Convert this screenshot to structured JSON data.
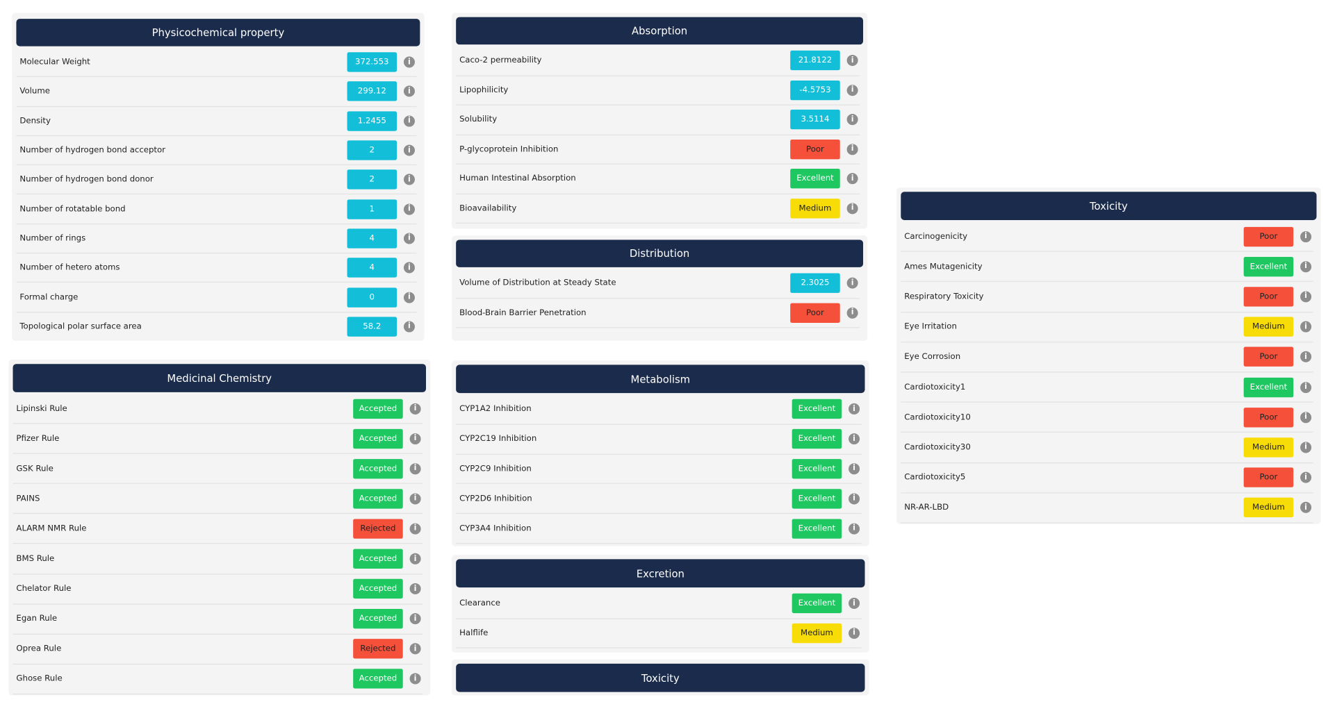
{
  "panels": [
    {
      "title": "Physicochemical property",
      "rows": [
        {
          "label": "Molecular Weight",
          "value": "372.553",
          "color": "#13bfd8"
        },
        {
          "label": "Volume",
          "value": "299.12",
          "color": "#13bfd8"
        },
        {
          "label": "Density",
          "value": "1.2455",
          "color": "#13bfd8"
        },
        {
          "label": "Number of hydrogen bond acceptor",
          "value": "2",
          "color": "#13bfd8"
        },
        {
          "label": "Number of hydrogen bond donor",
          "value": "2",
          "color": "#13bfd8"
        },
        {
          "label": "Number of rotatable bond",
          "value": "1",
          "color": "#13bfd8"
        },
        {
          "label": "Number of rings",
          "value": "4",
          "color": "#13bfd8"
        },
        {
          "label": "Number of hetero atoms",
          "value": "4",
          "color": "#13bfd8"
        },
        {
          "label": "Formal charge",
          "value": "0",
          "color": "#13bfd8"
        },
        {
          "label": "Topological polar surface area",
          "value": "58.2",
          "color": "#13bfd8"
        }
      ]
    },
    {
      "title": "Medicinal Chemistry",
      "rows": [
        {
          "label": "Lipinski Rule",
          "value": "Accepted",
          "color": "#1ec760"
        },
        {
          "label": "Pfizer Rule",
          "value": "Accepted",
          "color": "#1ec760"
        },
        {
          "label": "GSK Rule",
          "value": "Accepted",
          "color": "#1ec760"
        },
        {
          "label": "PAINS",
          "value": "Accepted",
          "color": "#1ec760"
        },
        {
          "label": "ALARM NMR Rule",
          "value": "Rejected",
          "color": "#f4503a"
        },
        {
          "label": "BMS Rule",
          "value": "Accepted",
          "color": "#1ec760"
        },
        {
          "label": "Chelator Rule",
          "value": "Accepted",
          "color": "#1ec760"
        },
        {
          "label": "Egan Rule",
          "value": "Accepted",
          "color": "#1ec760"
        },
        {
          "label": "Oprea Rule",
          "value": "Rejected",
          "color": "#f4503a"
        },
        {
          "label": "Ghose Rule",
          "value": "Accepted",
          "color": "#1ec760"
        }
      ]
    },
    {
      "title": "Absorption",
      "rows": [
        {
          "label": "Caco-2 permeability",
          "value": "21.8122",
          "color": "#13bfd8"
        },
        {
          "label": "Lipophilicity",
          "value": "-4.5753",
          "color": "#13bfd8"
        },
        {
          "label": "Solubility",
          "value": "3.5114",
          "color": "#13bfd8"
        },
        {
          "label": "P-glycoprotein Inhibition",
          "value": "Poor",
          "color": "#f4503a"
        },
        {
          "label": "Human Intestinal Absorption",
          "value": "Excellent",
          "color": "#1ec760"
        },
        {
          "label": "Bioavailability",
          "value": "Medium",
          "color": "#f7dc08"
        }
      ]
    },
    {
      "title": "Distribution",
      "rows": [
        {
          "label": "Volume of Distribution at Steady State",
          "value": "2.3025",
          "color": "#13bfd8"
        },
        {
          "label": "Blood-Brain Barrier Penetration",
          "value": "Poor",
          "color": "#f4503a"
        }
      ]
    },
    {
      "title": "Metabolism",
      "rows": [
        {
          "label": "CYP1A2 Inhibition",
          "value": "Excellent",
          "color": "#1ec760"
        },
        {
          "label": "CYP2C19 Inhibition",
          "value": "Excellent",
          "color": "#1ec760"
        },
        {
          "label": "CYP2C9 Inhibition",
          "value": "Excellent",
          "color": "#1ec760"
        },
        {
          "label": "CYP2D6 Inhibition",
          "value": "Excellent",
          "color": "#1ec760"
        },
        {
          "label": "CYP3A4 Inhibition",
          "value": "Excellent",
          "color": "#1ec760"
        }
      ]
    },
    {
      "title": "Excretion",
      "rows": [
        {
          "label": "Clearance",
          "value": "Excellent",
          "color": "#1ec760"
        },
        {
          "label": "Halflife",
          "value": "Medium",
          "color": "#f7dc08"
        }
      ]
    },
    {
      "title": "Toxicity",
      "rows": []
    },
    {
      "title": "Toxicity",
      "rows": [
        {
          "label": "Carcinogenicity",
          "value": "Poor",
          "color": "#f4503a"
        },
        {
          "label": "Ames Mutagenicity",
          "value": "Excellent",
          "color": "#1ec760"
        },
        {
          "label": "Respiratory Toxicity",
          "value": "Poor",
          "color": "#f4503a"
        },
        {
          "label": "Eye Irritation",
          "value": "Medium",
          "color": "#f7dc08"
        },
        {
          "label": "Eye Corrosion",
          "value": "Poor",
          "color": "#f4503a"
        },
        {
          "label": "Cardiotoxicity1",
          "value": "Excellent",
          "color": "#1ec760"
        },
        {
          "label": "Cardiotoxicity10",
          "value": "Poor",
          "color": "#f4503a"
        },
        {
          "label": "Cardiotoxicity30",
          "value": "Medium",
          "color": "#f7dc08"
        },
        {
          "label": "Cardiotoxicity5",
          "value": "Poor",
          "color": "#f4503a"
        },
        {
          "label": "NR-AR-LBD",
          "value": "Medium",
          "color": "#f7dc08"
        }
      ]
    }
  ]
}
